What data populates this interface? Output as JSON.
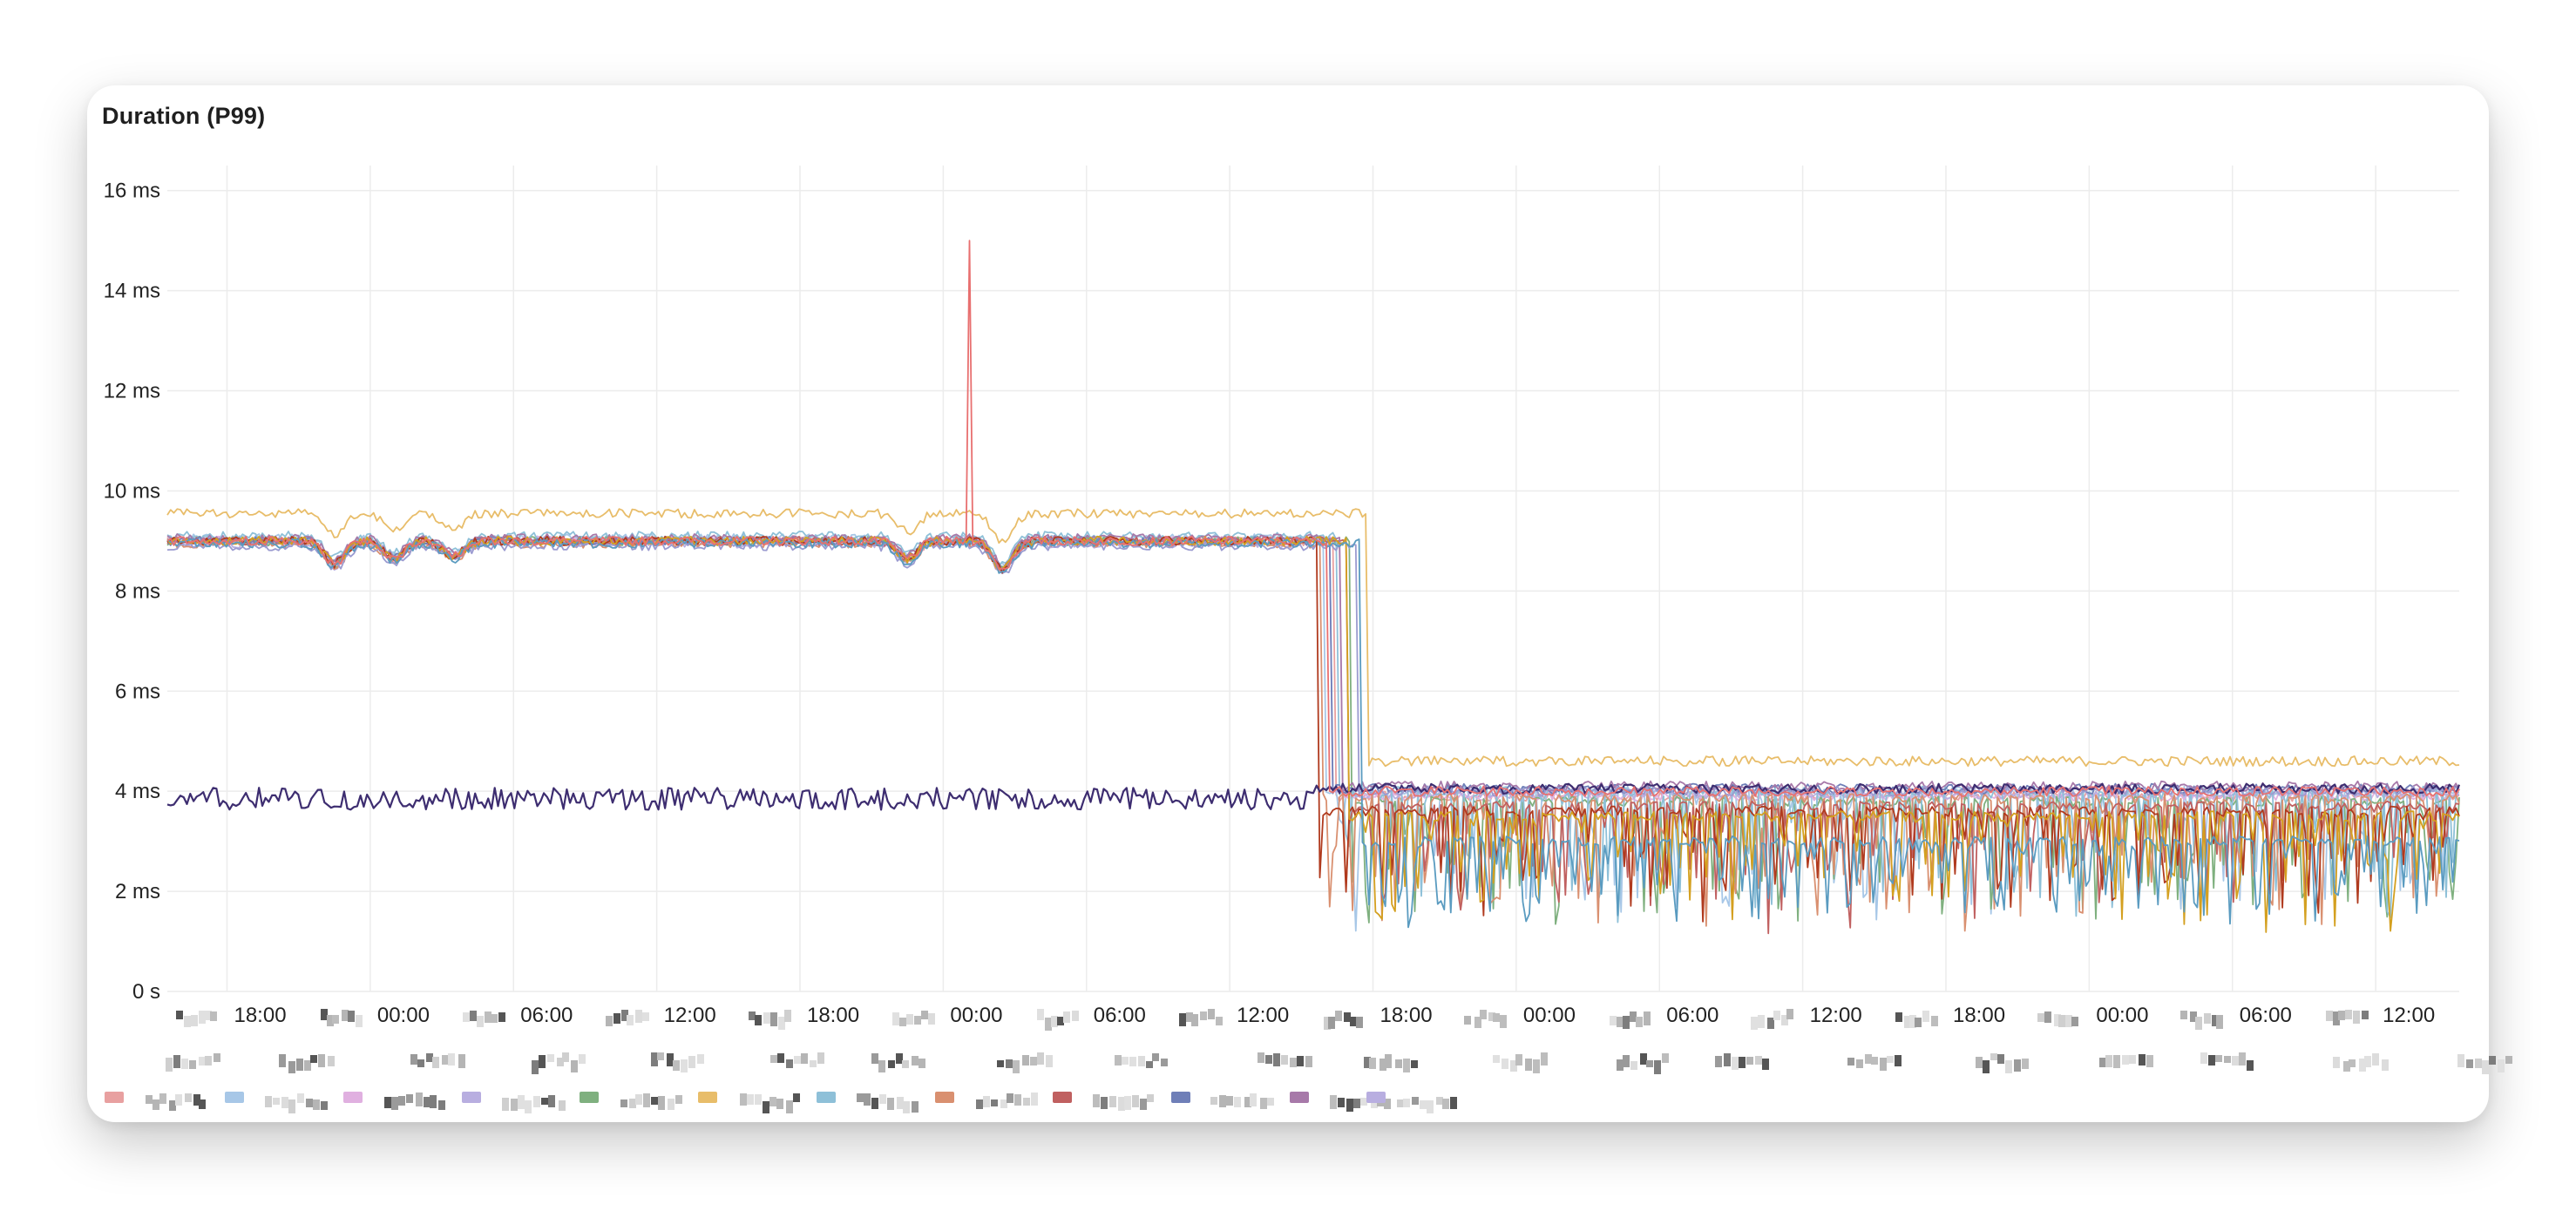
{
  "panel": {
    "title": "Duration (P99)"
  },
  "chart_data": {
    "type": "line",
    "title": "Duration (P99)",
    "y_unit": "ms",
    "ylim": [
      0,
      16.5
    ],
    "y_ticks": [
      {
        "value": 0,
        "label": "0 s"
      },
      {
        "value": 2,
        "label": "2 ms"
      },
      {
        "value": 4,
        "label": "4 ms"
      },
      {
        "value": 6,
        "label": "6 ms"
      },
      {
        "value": 8,
        "label": "8 ms"
      },
      {
        "value": 10,
        "label": "10 ms"
      },
      {
        "value": 12,
        "label": "12 ms"
      },
      {
        "value": 14,
        "label": "14 ms"
      },
      {
        "value": 16,
        "label": "16 ms"
      }
    ],
    "x_unit": "hours",
    "xlim": [
      0,
      96
    ],
    "x_ticks": [
      {
        "value": 2.5,
        "label": "18:00"
      },
      {
        "value": 8.5,
        "label": "00:00"
      },
      {
        "value": 14.5,
        "label": "06:00"
      },
      {
        "value": 20.5,
        "label": "12:00"
      },
      {
        "value": 26.5,
        "label": "18:00"
      },
      {
        "value": 32.5,
        "label": "00:00"
      },
      {
        "value": 38.5,
        "label": "06:00"
      },
      {
        "value": 44.5,
        "label": "12:00"
      },
      {
        "value": 50.5,
        "label": "18:00"
      },
      {
        "value": 56.5,
        "label": "00:00"
      },
      {
        "value": 62.5,
        "label": "06:00"
      },
      {
        "value": 68.5,
        "label": "12:00"
      },
      {
        "value": 74.5,
        "label": "18:00"
      },
      {
        "value": 80.5,
        "label": "00:00"
      },
      {
        "value": 86.5,
        "label": "06:00"
      },
      {
        "value": 92.5,
        "label": "12:00"
      }
    ],
    "grid": true,
    "legend_position": "bottom",
    "series": [
      {
        "color": "#e8a0a0",
        "before": 9.0,
        "after": 3.9,
        "switch": 48.9,
        "floor_dips": false
      },
      {
        "color": "#a7c7e7",
        "before": 9.05,
        "after": 4.0,
        "switch": 48.5,
        "floor_dips": true
      },
      {
        "color": "#e0b0e0",
        "before": 9.0,
        "after": 3.9,
        "switch": 49.2,
        "floor_dips": false
      },
      {
        "color": "#b8aee0",
        "before": 8.95,
        "after": 3.95,
        "switch": 48.7,
        "floor_dips": false
      },
      {
        "color": "#7fb07f",
        "before": 9.0,
        "after": 3.8,
        "switch": 49.6,
        "floor_dips": true
      },
      {
        "color": "#e8bd6a",
        "before": 9.55,
        "after": 4.6,
        "switch": 50.2,
        "floor_dips": false
      },
      {
        "color": "#8ec0d8",
        "before": 9.1,
        "after": 4.0,
        "switch": 49.0,
        "floor_dips": true
      },
      {
        "color": "#d99070",
        "before": 8.95,
        "after": 3.85,
        "switch": 48.3,
        "floor_dips": true
      },
      {
        "color": "#c06060",
        "before": 9.0,
        "after": 3.7,
        "switch": 49.4,
        "floor_dips": true
      },
      {
        "color": "#6f7fb8",
        "before": 9.0,
        "after": 4.05,
        "switch": 48.8,
        "floor_dips": false
      },
      {
        "color": "#a779a9",
        "before": 9.05,
        "after": 4.1,
        "switch": 49.1,
        "floor_dips": false
      },
      {
        "color": "#9b9bd0",
        "before": 8.9,
        "after": 4.0,
        "switch": 49.8,
        "floor_dips": false
      },
      {
        "color": "#b03a1e",
        "before": 9.0,
        "after": 3.6,
        "switch": 48.2,
        "floor_dips": true
      },
      {
        "color": "#d4a020",
        "before": 9.0,
        "after": 3.5,
        "switch": 49.5,
        "floor_dips": true
      },
      {
        "color": "#5a9bc0",
        "before": 8.95,
        "after": 3.0,
        "switch": 50.0,
        "floor_dips": true
      },
      {
        "color": "#3d2d70",
        "before": 3.85,
        "after": 4.05,
        "switch": 48.0,
        "floor_dips": false
      },
      {
        "color": "#e87070",
        "before": 9.0,
        "after": 4.0,
        "switch": 48.6,
        "floor_dips": false,
        "spike": {
          "x": 33.6,
          "y": 15.0
        }
      }
    ]
  }
}
